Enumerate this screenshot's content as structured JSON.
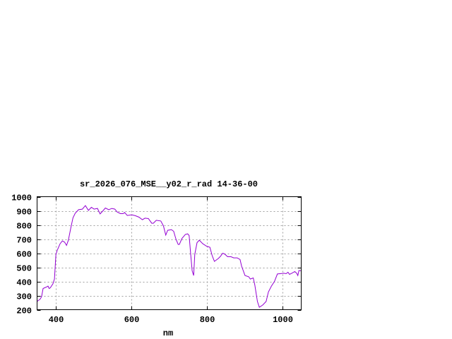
{
  "chart_data": {
    "type": "line",
    "title": "sr_2026_076_MSE__y02_r_rad 14-36-00",
    "xlabel": "nm",
    "ylabel": "",
    "xlim": [
      350,
      1050
    ],
    "ylim": [
      200,
      1000
    ],
    "xticks": [
      400,
      600,
      800,
      1000
    ],
    "yticks": [
      200,
      300,
      400,
      500,
      600,
      700,
      800,
      900,
      1000
    ],
    "grid": true,
    "line_color": "#9400d3",
    "series": [
      {
        "x": [
          350,
          358,
          362,
          366,
          370,
          376,
          379,
          382,
          385,
          392,
          396,
          400,
          404,
          411,
          417,
          423,
          428,
          433,
          439,
          445,
          451,
          460,
          470,
          478,
          486,
          494,
          501,
          510,
          517,
          523,
          531,
          540,
          548,
          556,
          562,
          571,
          578,
          582,
          589,
          601,
          611,
          620,
          629,
          636,
          645,
          654,
          658,
          666,
          678,
          685,
          691,
          696,
          706,
          712,
          718,
          724,
          727,
          734,
          743,
          749,
          753,
          757,
          761,
          765,
          768,
          774,
          780,
          789,
          799,
          808,
          814,
          820,
          830,
          836,
          842,
          848,
          855,
          864,
          871,
          880,
          888,
          892,
          901,
          911,
          915,
          923,
          927,
          934,
          939,
          948,
          957,
          963,
          971,
          979,
          987,
          994,
          1004,
          1010,
          1015,
          1019,
          1025,
          1033,
          1038,
          1041,
          1044,
          1050
        ],
        "y": [
          258,
          275,
          292,
          350,
          355,
          362,
          367,
          350,
          355,
          383,
          417,
          592,
          625,
          667,
          687,
          678,
          655,
          692,
          775,
          850,
          883,
          908,
          912,
          937,
          903,
          925,
          912,
          917,
          878,
          895,
          920,
          908,
          917,
          912,
          892,
          880,
          880,
          888,
          867,
          872,
          865,
          855,
          837,
          848,
          845,
          812,
          812,
          833,
          828,
          792,
          728,
          762,
          767,
          755,
          700,
          662,
          662,
          705,
          733,
          737,
          725,
          592,
          475,
          442,
          592,
          675,
          692,
          667,
          650,
          642,
          583,
          542,
          562,
          578,
          600,
          592,
          575,
          575,
          567,
          567,
          555,
          508,
          442,
          433,
          417,
          425,
          375,
          258,
          217,
          233,
          258,
          325,
          367,
          400,
          453,
          455,
          458,
          455,
          465,
          450,
          458,
          470,
          458,
          442,
          478,
          475
        ]
      }
    ]
  }
}
